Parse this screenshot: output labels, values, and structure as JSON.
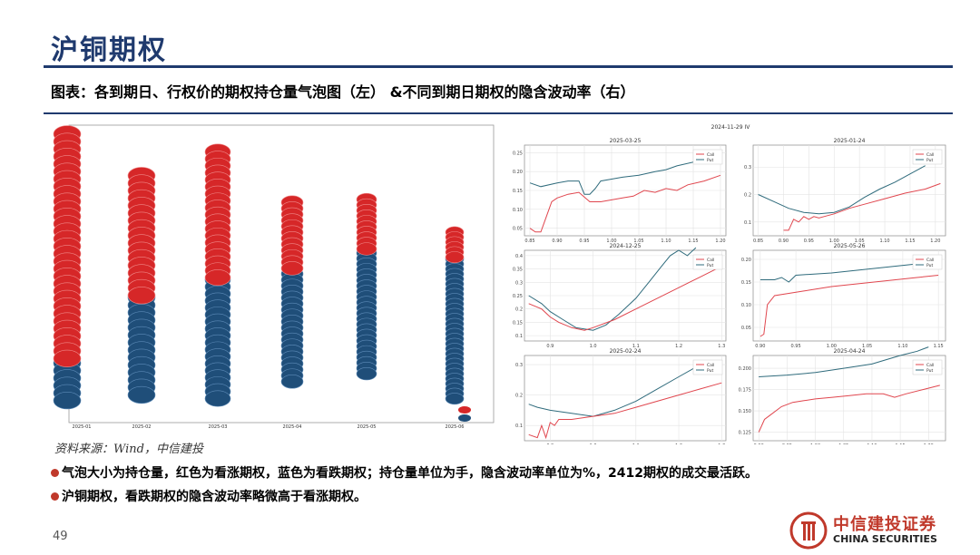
{
  "slide": {
    "title": "沪铜期权",
    "figure_caption": "图表：各到期日、行权价的期权持仓量气泡图（左）  &不同到期日期权的隐含波动率（右）",
    "source": "资料来源：Wind，中信建投",
    "bullets": [
      "气泡大小为持仓量，红色为看涨期权，蓝色为看跌期权；持仓量单位为手，隐含波动率单位为%，2412期权的成交最活跃。",
      "沪铜期权，看跌期权的隐含波动率略微高于看涨期权。"
    ],
    "page_number": "49",
    "logo": {
      "cn": "中信建投证券",
      "en": "CHINA SECURITIES"
    }
  },
  "colors": {
    "call": "#d62728",
    "put": "#1f4e79",
    "call_line": "#e0464e",
    "put_line": "#2f6b7c",
    "accent": "#1f3a6e"
  },
  "chart_data": [
    {
      "type": "scatter",
      "title": "",
      "xlabel": "",
      "ylabel": "",
      "categories": [
        "2025-01",
        "2025-02",
        "2025-03",
        "2025-04",
        "2025-05",
        "2025-06"
      ],
      "series": [
        {
          "name": "",
          "color": "#d62728",
          "column_tops": [
            0.97,
            0.83,
            0.91,
            0.74,
            0.75,
            0.64
          ],
          "red_bottoms": [
            0.2,
            0.42,
            0.48,
            0.5,
            0.57,
            0.55
          ]
        },
        {
          "name": "",
          "color": "#1f4e79",
          "column_bottoms": [
            0.05,
            0.08,
            0.08,
            0.13,
            0.15,
            0.07
          ]
        }
      ],
      "legend": [
        "",
        ""
      ]
    },
    {
      "type": "line",
      "suptitle": "2024-11-29 IV",
      "subplots": [
        {
          "title": "2025-03-25",
          "legend": [
            "Call",
            "Put"
          ],
          "ylim": [
            0.03,
            0.27
          ],
          "yticks": [
            "0.25",
            "0.20",
            "0.15",
            "0.10",
            "0.05"
          ],
          "xticks": [
            "0.85",
            "0.90",
            "0.95",
            "1.00",
            "1.05",
            "1.10",
            "1.15",
            "1.20"
          ],
          "call": {
            "x": [
              0.85,
              0.86,
              0.87,
              0.88,
              0.89,
              0.9,
              0.92,
              0.94,
              0.96,
              0.98,
              1.0,
              1.02,
              1.04,
              1.06,
              1.08,
              1.1,
              1.12,
              1.14,
              1.17,
              1.2
            ],
            "y": [
              0.05,
              0.04,
              0.04,
              0.08,
              0.12,
              0.13,
              0.14,
              0.145,
              0.12,
              0.12,
              0.125,
              0.13,
              0.135,
              0.15,
              0.145,
              0.155,
              0.15,
              0.165,
              0.175,
              0.19
            ]
          },
          "put": {
            "x": [
              0.85,
              0.87,
              0.9,
              0.92,
              0.94,
              0.95,
              0.96,
              0.97,
              0.98,
              1.0,
              1.02,
              1.05,
              1.08,
              1.1,
              1.12,
              1.15,
              1.18
            ],
            "y": [
              0.17,
              0.16,
              0.17,
              0.175,
              0.175,
              0.14,
              0.14,
              0.155,
              0.175,
              0.18,
              0.185,
              0.19,
              0.2,
              0.205,
              0.215,
              0.225,
              0.235
            ]
          }
        },
        {
          "title": "2025-01-24",
          "legend": [
            "Call",
            "Put"
          ],
          "ylim": [
            0.05,
            0.38
          ],
          "yticks": [
            "0.3",
            "0.2",
            "0.1"
          ],
          "xticks": [
            "0.85",
            "0.90",
            "0.95",
            "1.00",
            "1.05",
            "1.10",
            "1.15",
            "1.20"
          ],
          "call": {
            "x": [
              0.9,
              0.91,
              0.92,
              0.93,
              0.94,
              0.95,
              0.96,
              0.97,
              0.98,
              1.0,
              1.03,
              1.06,
              1.1,
              1.14,
              1.18,
              1.21
            ],
            "y": [
              0.07,
              0.07,
              0.11,
              0.1,
              0.12,
              0.11,
              0.12,
              0.115,
              0.12,
              0.13,
              0.15,
              0.165,
              0.185,
              0.205,
              0.22,
              0.24
            ]
          },
          "put": {
            "x": [
              0.85,
              0.88,
              0.91,
              0.94,
              0.97,
              1.0,
              1.03,
              1.06,
              1.09,
              1.12,
              1.15,
              1.18
            ],
            "y": [
              0.2,
              0.175,
              0.15,
              0.135,
              0.13,
              0.135,
              0.155,
              0.19,
              0.22,
              0.245,
              0.275,
              0.305
            ]
          }
        },
        {
          "title": "2024-12-25",
          "legend": [
            "Call",
            "Put"
          ],
          "ylim": [
            0.08,
            0.42
          ],
          "yticks": [
            "0.4",
            "0.35",
            "0.3",
            "0.25",
            "0.2",
            "0.15",
            "0.1"
          ],
          "xticks": [
            "0.9",
            "1.0",
            "1.1",
            "1.2",
            "1.3"
          ],
          "call": {
            "x": [
              0.85,
              0.88,
              0.9,
              0.92,
              0.95,
              0.98,
              1.0,
              1.05,
              1.1,
              1.15,
              1.2,
              1.25,
              1.3
            ],
            "y": [
              0.22,
              0.2,
              0.17,
              0.15,
              0.13,
              0.12,
              0.13,
              0.16,
              0.2,
              0.24,
              0.28,
              0.32,
              0.36
            ]
          },
          "put": {
            "x": [
              0.85,
              0.88,
              0.9,
              0.93,
              0.96,
              1.0,
              1.03,
              1.06,
              1.1,
              1.13,
              1.16,
              1.18,
              1.2,
              1.22,
              1.24
            ],
            "y": [
              0.25,
              0.22,
              0.19,
              0.16,
              0.13,
              0.12,
              0.14,
              0.18,
              0.24,
              0.3,
              0.36,
              0.4,
              0.42,
              0.4,
              0.43
            ]
          }
        },
        {
          "title": "2025-05-26",
          "legend": [
            "Call",
            "Put"
          ],
          "ylim": [
            0.02,
            0.22
          ],
          "yticks": [
            "0.20",
            "0.15",
            "0.10",
            "0.05"
          ],
          "xticks": [
            "0.90",
            "0.95",
            "1.00",
            "1.05",
            "1.10",
            "1.15"
          ],
          "call": {
            "x": [
              0.9,
              0.905,
              0.91,
              0.92,
              0.94,
              0.96,
              0.98,
              1.0,
              1.03,
              1.06,
              1.09,
              1.12,
              1.15
            ],
            "y": [
              0.03,
              0.035,
              0.1,
              0.12,
              0.125,
              0.13,
              0.135,
              0.14,
              0.145,
              0.15,
              0.155,
              0.16,
              0.165
            ]
          },
          "put": {
            "x": [
              0.9,
              0.92,
              0.93,
              0.94,
              0.95,
              0.98,
              1.0,
              1.03,
              1.06,
              1.09,
              1.12,
              1.15
            ],
            "y": [
              0.155,
              0.155,
              0.16,
              0.15,
              0.165,
              0.168,
              0.17,
              0.175,
              0.18,
              0.185,
              0.19,
              0.195
            ]
          }
        },
        {
          "title": "2025-02-24",
          "legend": [
            "Call",
            "Put"
          ],
          "ylim": [
            0.05,
            0.33
          ],
          "yticks": [
            "0.3",
            "0.2",
            "0.1"
          ],
          "xticks": [
            "0.9",
            "1.0",
            "1.1",
            "1.2",
            "1.3"
          ],
          "call": {
            "x": [
              0.85,
              0.87,
              0.88,
              0.89,
              0.9,
              0.91,
              0.92,
              0.95,
              1.0,
              1.05,
              1.1,
              1.15,
              1.2,
              1.25,
              1.3
            ],
            "y": [
              0.07,
              0.06,
              0.1,
              0.06,
              0.11,
              0.1,
              0.12,
              0.12,
              0.13,
              0.14,
              0.16,
              0.18,
              0.2,
              0.22,
              0.24
            ]
          },
          "put": {
            "x": [
              0.85,
              0.87,
              0.9,
              0.95,
              1.0,
              1.05,
              1.1,
              1.15,
              1.2,
              1.25,
              1.28
            ],
            "y": [
              0.17,
              0.16,
              0.15,
              0.14,
              0.13,
              0.15,
              0.18,
              0.22,
              0.26,
              0.3,
              0.31
            ]
          }
        },
        {
          "title": "2025-04-24",
          "legend": [
            "Call",
            "Put"
          ],
          "ylim": [
            0.115,
            0.215
          ],
          "yticks": [
            "0.200",
            "0.175",
            "0.150",
            "0.125"
          ],
          "xticks": [
            "0.90",
            "0.95",
            "1.00",
            "1.05",
            "1.10",
            "1.15",
            "1.20"
          ],
          "call": {
            "x": [
              0.9,
              0.91,
              0.92,
              0.94,
              0.96,
              0.98,
              1.0,
              1.03,
              1.06,
              1.09,
              1.12,
              1.14,
              1.16,
              1.19,
              1.22
            ],
            "y": [
              0.125,
              0.14,
              0.145,
              0.155,
              0.16,
              0.162,
              0.164,
              0.166,
              0.168,
              0.17,
              0.17,
              0.166,
              0.17,
              0.175,
              0.18
            ]
          },
          "put": {
            "x": [
              0.9,
              0.95,
              1.0,
              1.05,
              1.1,
              1.15,
              1.18,
              1.2
            ],
            "y": [
              0.19,
              0.192,
              0.195,
              0.2,
              0.205,
              0.215,
              0.22,
              0.225
            ]
          }
        }
      ]
    }
  ]
}
